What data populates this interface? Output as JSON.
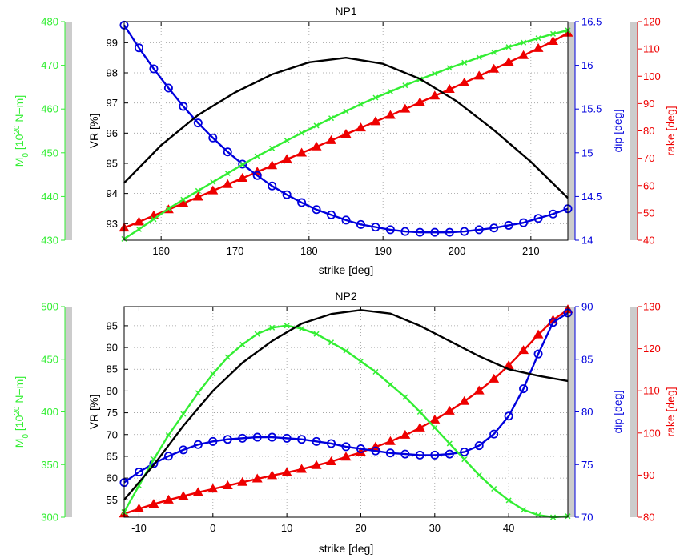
{
  "figure": {
    "background": "#ffffff"
  },
  "colors": {
    "vr": "#000000",
    "m0": "#33ee33",
    "dip": "#0000dd",
    "rake": "#ee0000",
    "bar": "#cccccc",
    "grid": "#999999"
  },
  "chart_data": [
    {
      "type": "line",
      "title": "NP1",
      "xlabel": "strike [deg]",
      "xlim": [
        155,
        215
      ],
      "xticks": [
        160,
        170,
        180,
        190,
        200,
        210
      ],
      "grid": true,
      "axes": {
        "vr": {
          "label": "VR [%]",
          "ylim": [
            92.45,
            99.7
          ],
          "ticks": [
            93,
            94,
            95,
            96,
            97,
            98,
            99
          ]
        },
        "m0": {
          "label": "M₀ [10²⁰ N–m]",
          "label_parts": {
            "base": "M",
            "sub": "0",
            "pre": " [10",
            "sup": "20",
            "post": " N−m]"
          },
          "ylim": [
            430,
            480
          ],
          "ticks": [
            430,
            440,
            450,
            460,
            470,
            480
          ]
        },
        "dip": {
          "label": "dip [deg]",
          "ylim": [
            14,
            16.5
          ],
          "ticks": [
            14,
            14.5,
            15,
            15.5,
            16,
            16.5
          ]
        },
        "rake": {
          "label": "rake [deg]",
          "ylim": [
            40,
            120
          ],
          "ticks": [
            40,
            50,
            60,
            70,
            80,
            90,
            100,
            110,
            120
          ]
        }
      },
      "series": [
        {
          "axis": "vr",
          "marker": "none",
          "x": [
            155,
            160,
            165,
            170,
            175,
            180,
            185,
            190,
            195,
            200,
            205,
            210,
            215
          ],
          "y": [
            94.35,
            95.6,
            96.6,
            97.35,
            97.95,
            98.35,
            98.5,
            98.3,
            97.8,
            97.05,
            96.1,
            95.05,
            93.85
          ]
        },
        {
          "axis": "m0",
          "marker": "x",
          "x": [
            155,
            157,
            159,
            161,
            163,
            165,
            167,
            169,
            171,
            173,
            175,
            177,
            179,
            181,
            183,
            185,
            187,
            189,
            191,
            193,
            195,
            197,
            199,
            201,
            203,
            205,
            207,
            209,
            211,
            213,
            215
          ],
          "y": [
            430.3,
            432.5,
            434.8,
            437.2,
            439.3,
            441.3,
            443.3,
            445.3,
            447.3,
            449.2,
            451.0,
            452.8,
            454.5,
            456.2,
            457.9,
            459.5,
            461.1,
            462.6,
            464.0,
            465.4,
            466.8,
            468.1,
            469.4,
            470.6,
            471.8,
            473.0,
            474.2,
            475.2,
            476.2,
            477.2,
            478.0
          ]
        },
        {
          "axis": "dip",
          "marker": "o",
          "x": [
            155,
            157,
            159,
            161,
            163,
            165,
            167,
            169,
            171,
            173,
            175,
            177,
            179,
            181,
            183,
            185,
            187,
            189,
            191,
            193,
            195,
            197,
            199,
            201,
            203,
            205,
            207,
            209,
            211,
            213,
            215
          ],
          "y": [
            16.46,
            16.2,
            15.96,
            15.74,
            15.53,
            15.34,
            15.17,
            15.01,
            14.87,
            14.74,
            14.62,
            14.52,
            14.43,
            14.35,
            14.29,
            14.23,
            14.18,
            14.15,
            14.12,
            14.1,
            14.09,
            14.09,
            14.09,
            14.1,
            14.12,
            14.14,
            14.17,
            14.2,
            14.25,
            14.3,
            14.36
          ]
        },
        {
          "axis": "rake",
          "marker": "^",
          "x": [
            155,
            157,
            159,
            161,
            163,
            165,
            167,
            169,
            171,
            173,
            175,
            177,
            179,
            181,
            183,
            185,
            187,
            189,
            191,
            193,
            195,
            197,
            199,
            201,
            203,
            205,
            207,
            209,
            211,
            213,
            215
          ],
          "y": [
            44.5,
            46.7,
            49.0,
            51.2,
            53.5,
            55.8,
            58.1,
            60.4,
            62.7,
            65.0,
            67.3,
            69.6,
            71.9,
            74.2,
            76.5,
            78.8,
            81.1,
            83.4,
            85.7,
            88.0,
            90.4,
            92.8,
            95.2,
            97.6,
            100.1,
            102.6,
            105.1,
            107.6,
            110.2,
            112.8,
            115.8
          ]
        }
      ]
    },
    {
      "type": "line",
      "title": "NP2",
      "xlabel": "strike [deg]",
      "xlim": [
        -12,
        48
      ],
      "xticks": [
        -10,
        0,
        10,
        20,
        30,
        40
      ],
      "grid": true,
      "axes": {
        "vr": {
          "label": "VR [%]",
          "ylim": [
            51,
            99.4
          ],
          "ticks": [
            55,
            60,
            65,
            70,
            75,
            80,
            85,
            90,
            95
          ]
        },
        "m0": {
          "label": "M₀ [10²⁰ N–m]",
          "label_parts": {
            "base": "M",
            "sub": "0",
            "pre": " [10",
            "sup": "20",
            "post": " N−m]"
          },
          "ylim": [
            300,
            500
          ],
          "ticks": [
            300,
            350,
            400,
            450,
            500
          ]
        },
        "dip": {
          "label": "dip [deg]",
          "ylim": [
            70,
            90
          ],
          "ticks": [
            70,
            75,
            80,
            85,
            90
          ]
        },
        "rake": {
          "label": "rake [deg]",
          "ylim": [
            80,
            130
          ],
          "ticks": [
            80,
            90,
            100,
            110,
            120,
            130
          ]
        }
      },
      "series": [
        {
          "axis": "vr",
          "marker": "none",
          "x": [
            -12,
            -8,
            -4,
            0,
            4,
            8,
            12,
            16,
            20,
            24,
            28,
            32,
            36,
            40,
            44,
            48
          ],
          "y": [
            55.0,
            63.0,
            72.0,
            80.0,
            86.5,
            91.5,
            95.5,
            97.7,
            98.6,
            97.8,
            95.0,
            91.5,
            88.0,
            85.0,
            83.5,
            82.3
          ]
        },
        {
          "axis": "m0",
          "marker": "x",
          "x": [
            -12,
            -10,
            -8,
            -6,
            -4,
            -2,
            0,
            2,
            4,
            6,
            8,
            10,
            12,
            14,
            16,
            18,
            20,
            22,
            24,
            26,
            28,
            30,
            32,
            34,
            36,
            38,
            40,
            42,
            44,
            46,
            48
          ],
          "y": [
            305,
            330,
            355,
            378,
            398,
            418,
            436,
            452,
            464,
            474,
            480,
            482,
            479,
            474,
            466,
            458,
            448,
            438,
            426,
            414,
            400,
            385,
            370,
            355,
            340,
            327,
            316,
            307,
            302,
            300,
            301
          ]
        },
        {
          "axis": "dip",
          "marker": "o",
          "x": [
            -12,
            -10,
            -8,
            -6,
            -4,
            -2,
            0,
            2,
            4,
            6,
            8,
            10,
            12,
            14,
            16,
            18,
            20,
            22,
            24,
            26,
            28,
            30,
            32,
            34,
            36,
            38,
            40,
            42,
            44,
            46,
            48
          ],
          "y": [
            73.3,
            74.3,
            75.1,
            75.8,
            76.4,
            76.9,
            77.2,
            77.4,
            77.5,
            77.6,
            77.6,
            77.5,
            77.4,
            77.2,
            77.0,
            76.7,
            76.5,
            76.3,
            76.1,
            76.0,
            75.9,
            75.9,
            76.0,
            76.2,
            76.8,
            77.9,
            79.6,
            82.2,
            85.5,
            88.5,
            89.4
          ]
        },
        {
          "axis": "rake",
          "marker": "^",
          "x": [
            -12,
            -10,
            -8,
            -6,
            -4,
            -2,
            0,
            2,
            4,
            6,
            8,
            10,
            12,
            14,
            16,
            18,
            20,
            22,
            24,
            26,
            28,
            30,
            32,
            34,
            36,
            38,
            40,
            42,
            44,
            46,
            48
          ],
          "y": [
            80.8,
            82.0,
            83.1,
            84.1,
            85.0,
            85.9,
            86.7,
            87.5,
            88.3,
            89.1,
            89.9,
            90.6,
            91.4,
            92.3,
            93.2,
            94.3,
            95.4,
            96.7,
            98.0,
            99.5,
            101.2,
            103.1,
            105.2,
            107.5,
            110.0,
            112.8,
            116.0,
            119.6,
            123.3,
            126.8,
            129.3
          ]
        }
      ]
    }
  ]
}
